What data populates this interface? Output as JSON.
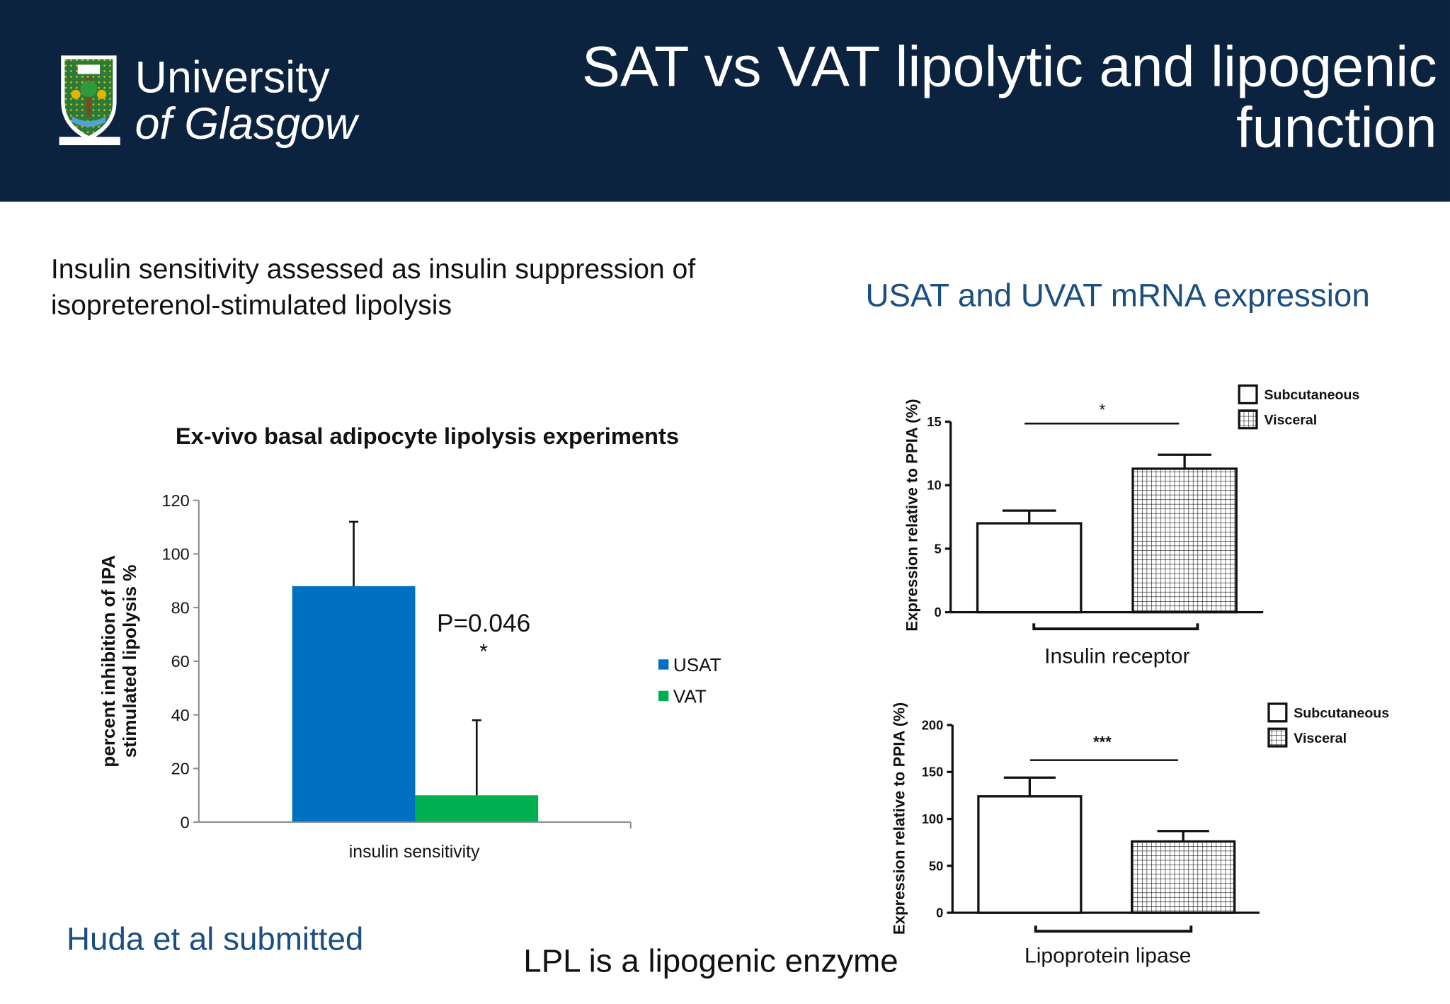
{
  "header": {
    "logo_line1": "University",
    "logo_line2": "of Glasgow",
    "title_line1": "SAT vs VAT lipolytic and lipogenic",
    "title_line2": "function"
  },
  "intro_text": "Insulin sensitivity assessed as insulin suppression of isopreterenol-stimulated lipolysis",
  "right_heading": "USAT and UVAT mRNA expression",
  "citation": "Huda et al submitted",
  "footnote": "LPL is a lipogenic enzyme",
  "colors": {
    "header_bg": "#0c2340",
    "usat": "#0070c0",
    "vat": "#00b050",
    "heading_blue": "#1b4f80"
  },
  "chart_data": [
    {
      "type": "bar",
      "title": "Ex-vivo  basal adipocyte lipolysis experiments",
      "ylabel_lines": [
        "percent inhibition of IPA",
        "stimulated lipolysis %"
      ],
      "categories": [
        "insulin sensitivity"
      ],
      "ylim": [
        0,
        120
      ],
      "yticks": [
        0,
        20,
        40,
        60,
        80,
        100,
        120
      ],
      "series": [
        {
          "name": "USAT",
          "values": [
            88
          ],
          "error": [
            24
          ],
          "color": "#0070c0"
        },
        {
          "name": "VAT",
          "values": [
            10
          ],
          "error": [
            28
          ],
          "color": "#00b050"
        }
      ],
      "annotation_p": "P=0.046",
      "annotation_star": "*",
      "legend": "right",
      "grid": false
    },
    {
      "type": "bar",
      "xlabel": "Insulin receptor",
      "ylabel": "Expression relative to PPIA (%)",
      "ylim": [
        0,
        15
      ],
      "yticks": [
        0,
        5,
        10,
        15
      ],
      "series": [
        {
          "name": "Subcutaneous",
          "values": [
            7
          ],
          "error": [
            1
          ],
          "fill": "open"
        },
        {
          "name": "Visceral",
          "values": [
            11.3
          ],
          "error": [
            1.1
          ],
          "fill": "grid"
        }
      ],
      "significance": "*",
      "legend": "top-right",
      "grid": false
    },
    {
      "type": "bar",
      "xlabel": "Lipoprotein lipase",
      "ylabel": "Expression relative to PPIA (%)",
      "ylim": [
        0,
        200
      ],
      "yticks": [
        0,
        50,
        100,
        150,
        200
      ],
      "series": [
        {
          "name": "Subcutaneous",
          "values": [
            124
          ],
          "error": [
            20
          ],
          "fill": "open"
        },
        {
          "name": "Visceral",
          "values": [
            76
          ],
          "error": [
            11
          ],
          "fill": "grid"
        }
      ],
      "significance": "***",
      "legend": "top-right",
      "grid": false
    }
  ]
}
